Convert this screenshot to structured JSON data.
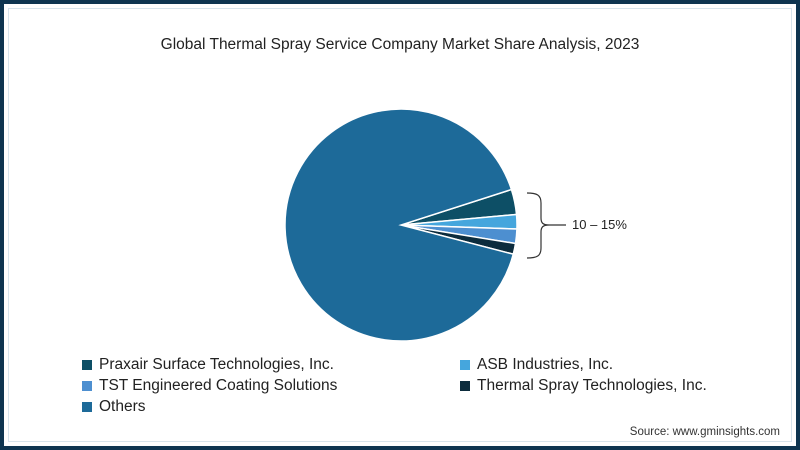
{
  "title": "Global Thermal Spray Service Company Market Share Analysis, 2023",
  "annotation": "10 – 15%",
  "source": "Source: www.gminsights.com",
  "legend": [
    {
      "label": "Praxair Surface Technologies, Inc.",
      "color": "#0d4f66"
    },
    {
      "label": "ASB Industries, Inc.",
      "color": "#45a6dd"
    },
    {
      "label": "TST Engineered Coating Solutions",
      "color": "#4d8fd0"
    },
    {
      "label": "Thermal Spray Technologies, Inc.",
      "color": "#0c2c3d"
    },
    {
      "label": "Others",
      "color": "#1d6a99"
    }
  ],
  "chart_data": {
    "type": "pie",
    "title": "Global Thermal Spray Service Company Market Share Analysis, 2023",
    "categories": [
      "Praxair Surface Technologies, Inc.",
      "ASB Industries, Inc.",
      "TST Engineered Coating Solutions",
      "Thermal Spray Technologies, Inc.",
      "Others"
    ],
    "values": [
      3.5,
      2.0,
      2.0,
      1.5,
      91.0
    ],
    "colors": [
      "#0d4f66",
      "#45a6dd",
      "#4d8fd0",
      "#0c2c3d",
      "#1d6a99"
    ],
    "annotations": [
      {
        "text": "10 – 15%",
        "applies_to": [
          "Praxair Surface Technologies, Inc.",
          "ASB Industries, Inc.",
          "TST Engineered Coating Solutions",
          "Thermal Spray Technologies, Inc."
        ]
      }
    ],
    "legend_position": "bottom",
    "source": "Source: www.gminsights.com"
  }
}
